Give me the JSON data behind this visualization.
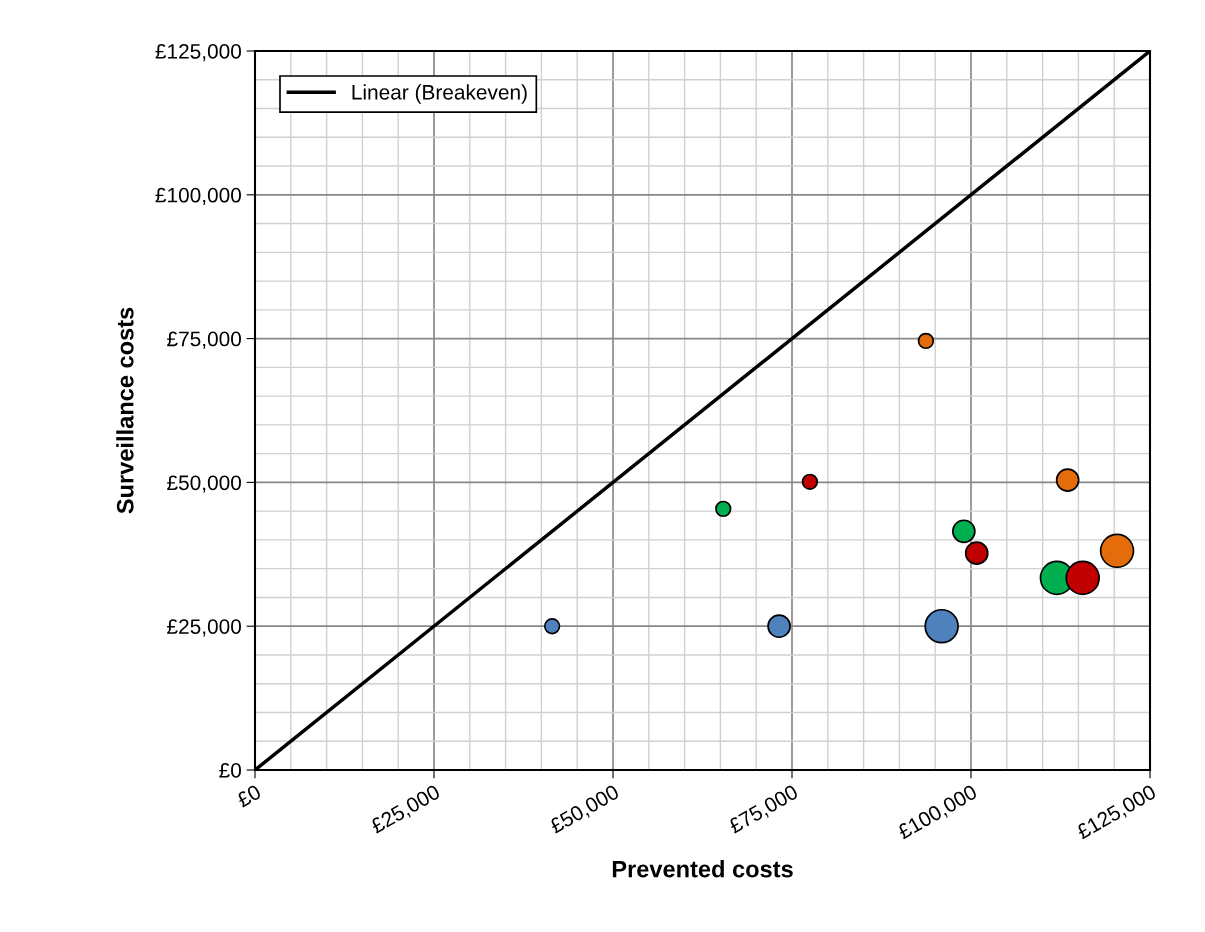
{
  "chart_data": {
    "type": "bubble",
    "xlabel": "Prevented costs",
    "ylabel": "Surveillance costs",
    "series": [
      {
        "color": "#4f81bd",
        "x": [
          41500,
          73200,
          95900
        ],
        "values": [
          25000,
          25000,
          25000
        ],
        "sizes": [
          0.2,
          0.45,
          1
        ]
      },
      {
        "color": "#00b050",
        "x": [
          65400,
          99000,
          112000
        ],
        "values": [
          45400,
          41500,
          33400
        ],
        "sizes": [
          0.2,
          0.45,
          1
        ]
      },
      {
        "color": "#c00000",
        "x": [
          77500,
          100800,
          115600
        ],
        "values": [
          50100,
          37700,
          33400
        ],
        "sizes": [
          0.2,
          0.45,
          1
        ]
      },
      {
        "color": "#e46c0a",
        "x": [
          93700,
          113500,
          120400
        ],
        "values": [
          74600,
          50400,
          38100
        ],
        "sizes": [
          0.2,
          0.45,
          1
        ]
      },
      {
        "type": "line",
        "name": "Linear (Breakeven)",
        "color": "#000000",
        "x": [
          0,
          125000
        ],
        "values": [
          0,
          125000
        ]
      }
    ],
    "xlim": [
      0,
      125000
    ],
    "ylim": [
      0,
      125000
    ],
    "xticks": [
      {
        "value": 0,
        "label": "£0"
      },
      {
        "value": 25000,
        "label": "£25,000"
      },
      {
        "value": 50000,
        "label": "£50,000"
      },
      {
        "value": 75000,
        "label": "£75,000"
      },
      {
        "value": 100000,
        "label": "£100,000"
      },
      {
        "value": 125000,
        "label": "£125,000"
      }
    ],
    "yticks": [
      {
        "value": 0,
        "label": "£0"
      },
      {
        "value": 25000,
        "label": "£25,000"
      },
      {
        "value": 50000,
        "label": "£50,000"
      },
      {
        "value": 75000,
        "label": "£75,000"
      },
      {
        "value": 100000,
        "label": "£100,000"
      },
      {
        "value": 125000,
        "label": "£125,000"
      }
    ],
    "grid": true,
    "legend": "top left"
  }
}
